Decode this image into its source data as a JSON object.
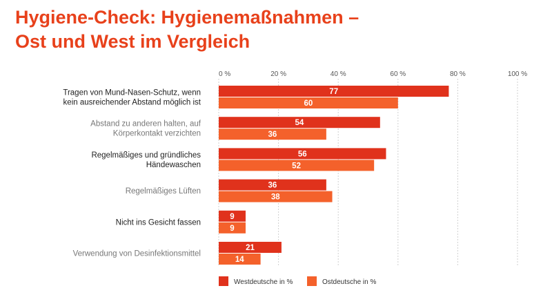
{
  "header": {
    "title_line1": "Hygiene-Check: Hygienemaßnahmen –",
    "title_line2": "Ost und West im Vergleich"
  },
  "colors": {
    "west": "#e0321c",
    "ost": "#f4612b",
    "title": "#e8411b",
    "grid": "#cfcfcf"
  },
  "chart_data": {
    "type": "bar",
    "orientation": "horizontal",
    "xlim": [
      0,
      100
    ],
    "ticks": [
      "0 %",
      "20 %",
      "40 %",
      "60 %",
      "80 %",
      "100 %"
    ],
    "tick_values": [
      0,
      20,
      40,
      60,
      80,
      100
    ],
    "grid": true,
    "legend_position": "bottom",
    "categories": [
      {
        "lines": [
          "Tragen von Mund-Nasen-Schutz, wenn",
          "kein ausreichender Abstand möglich ist"
        ],
        "color": "#222222"
      },
      {
        "lines": [
          "Abstand zu anderen halten, auf",
          "Körperkontakt verzichten"
        ],
        "color": "#777777"
      },
      {
        "lines": [
          "Regelmäßiges und gründliches",
          "Händewaschen"
        ],
        "color": "#222222"
      },
      {
        "lines": [
          "Regelmäßiges Lüften"
        ],
        "color": "#777777"
      },
      {
        "lines": [
          "Nicht ins Gesicht fassen"
        ],
        "color": "#222222"
      },
      {
        "lines": [
          "Verwendung von Desinfektionsmittel"
        ],
        "color": "#777777"
      }
    ],
    "series": [
      {
        "name": "Westdeutsche in %",
        "color": "#e0321c",
        "values": [
          77,
          54,
          56,
          36,
          9,
          21
        ]
      },
      {
        "name": "Ostdeutsche in %",
        "color": "#f4612b",
        "values": [
          60,
          36,
          52,
          38,
          9,
          14
        ]
      }
    ]
  }
}
